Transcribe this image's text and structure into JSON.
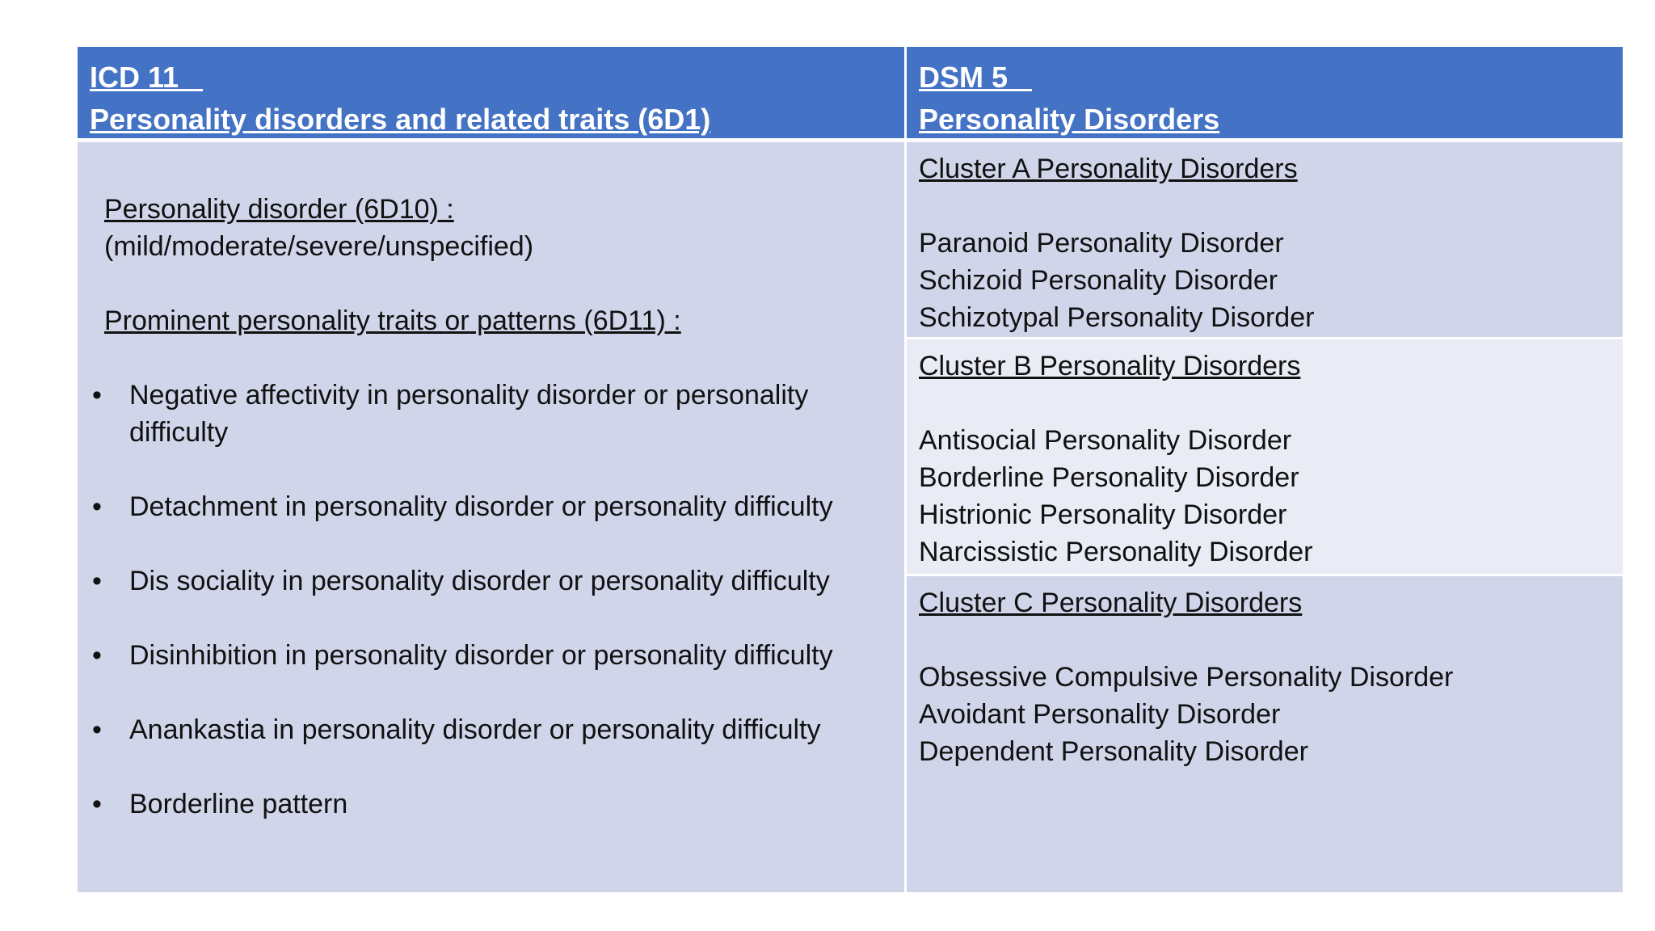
{
  "header": {
    "left_line1": "ICD 11   ",
    "left_line2": "Personality disorders and related traits (6D1)",
    "right_line1": "DSM 5   ",
    "right_line2": "Personality Disorders"
  },
  "icd": {
    "pd_title": "Personality disorder  (6D10) :",
    "pd_severity": "(mild/moderate/severe/unspecified)",
    "traits_title": "Prominent personality traits or patterns (6D11) :",
    "bullet_symbol": "•",
    "traits": [
      "Negative affectivity in personality disorder or personality difficulty",
      "Detachment in personality disorder or personality difficulty",
      "Dis sociality in personality disorder or personality difficulty",
      "Disinhibition in personality disorder or personality difficulty",
      "Anankastia in personality disorder or personality difficulty",
      "Borderline pattern"
    ]
  },
  "dsm": {
    "clusters": [
      {
        "title": "Cluster A Personality Disorders",
        "items": [
          "Paranoid Personality Disorder",
          "Schizoid Personality Disorder",
          "Schizotypal Personality Disorder"
        ]
      },
      {
        "title": "Cluster B Personality Disorders",
        "items": [
          "Antisocial Personality Disorder",
          "Borderline Personality Disorder",
          "Histrionic Personality Disorder",
          "Narcissistic Personality Disorder"
        ]
      },
      {
        "title": "Cluster C Personality Disorders",
        "items": [
          "Obsessive Compulsive Personality Disorder",
          "Avoidant Personality Disorder",
          "Dependent Personality Disorder"
        ]
      }
    ]
  },
  "colors": {
    "header_bg": "#4472c4",
    "cell_dark": "#d0d5ea",
    "cell_light": "#e9ebf5"
  }
}
